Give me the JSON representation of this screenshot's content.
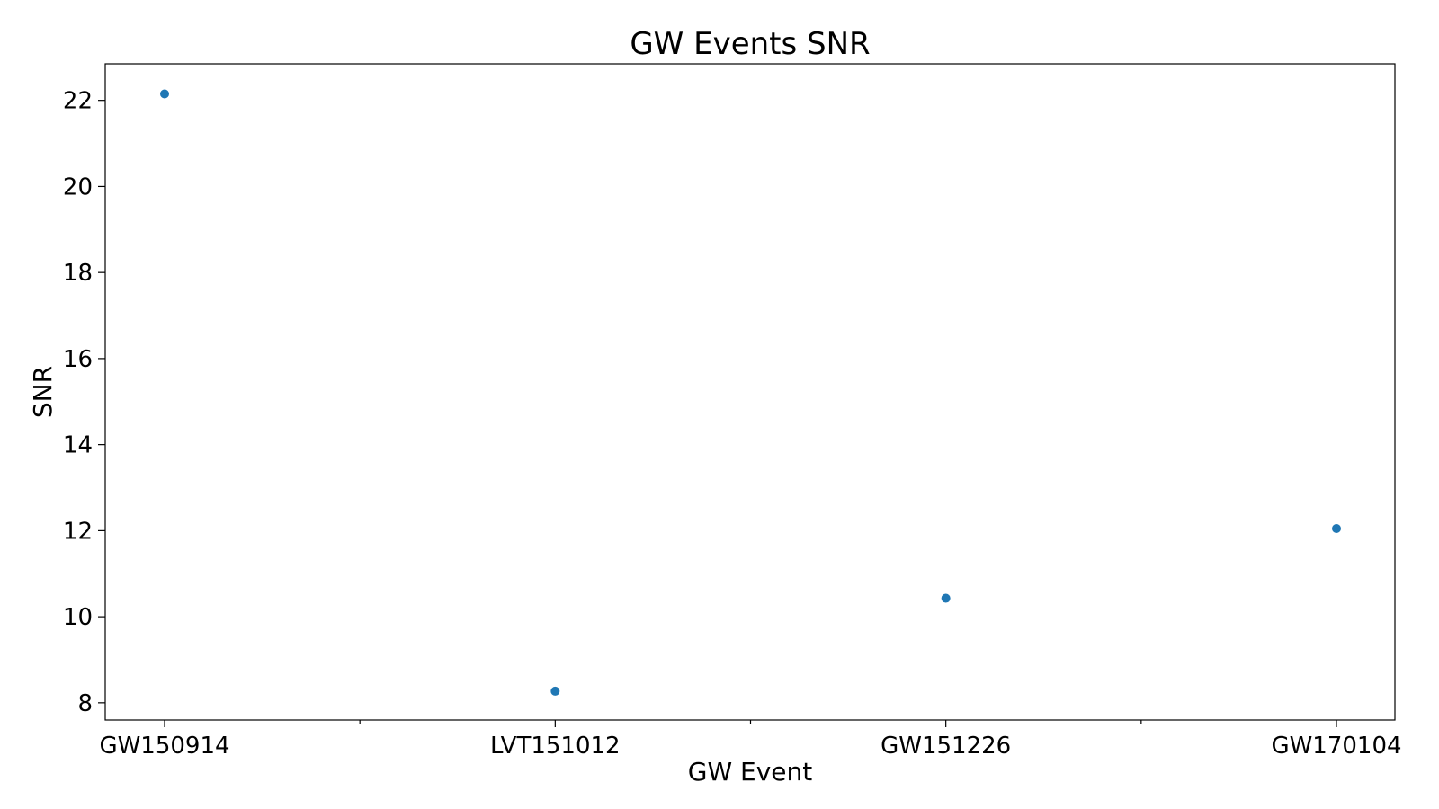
{
  "chart_data": {
    "type": "scatter",
    "title": "GW Events SNR",
    "xlabel": "GW Event",
    "ylabel": "SNR",
    "categories": [
      "GW150914",
      "LVT151012",
      "GW151226",
      "GW170104"
    ],
    "values": [
      22.15,
      8.27,
      10.43,
      12.05
    ],
    "ylim": [
      7.6,
      22.85
    ],
    "yticks": [
      "8",
      "10",
      "12",
      "14",
      "16",
      "18",
      "20",
      "22"
    ],
    "grid": false,
    "legend": "none",
    "colors": {
      "marker": "#1f77b4"
    }
  }
}
